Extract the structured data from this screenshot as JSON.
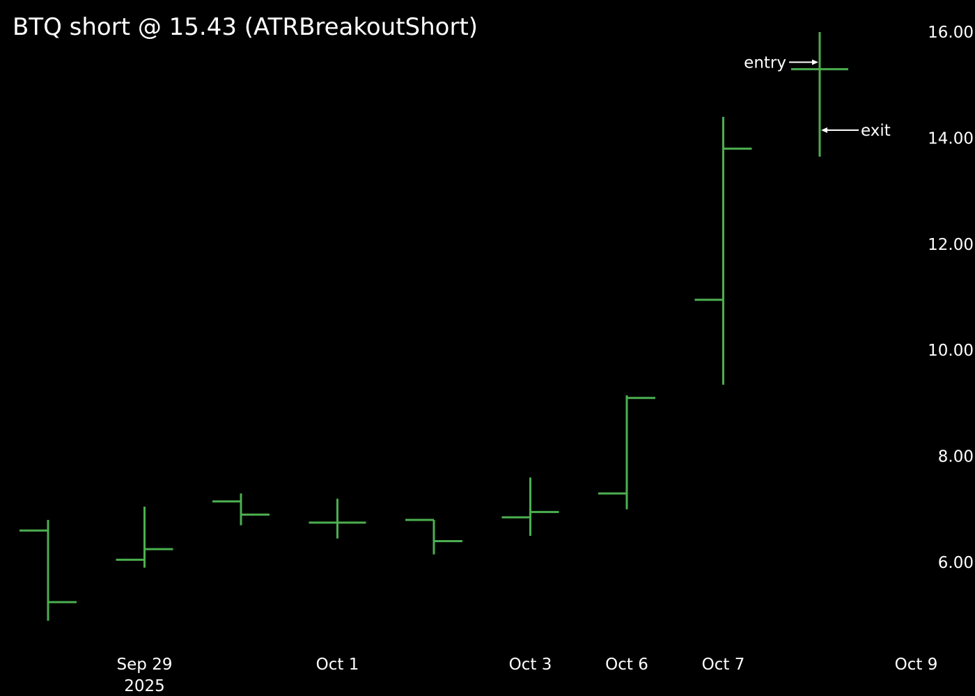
{
  "chart_data": {
    "type": "ohlc",
    "title": "BTQ short @ 15.43 (ATRBreakoutShort)",
    "xlabel": "",
    "ylabel": "",
    "y_axis_side": "right",
    "ylim": [
      4.6,
      16.4
    ],
    "y_ticks": [
      "6.00",
      "8.00",
      "10.00",
      "12.00",
      "14.00",
      "16.00"
    ],
    "grid": false,
    "legend": "none",
    "colors": {
      "background": "#000000",
      "bars": "#4caf50",
      "text": "#ffffff"
    },
    "x_tick_labels": [
      {
        "label": "Sep 29",
        "sublabel": "2025"
      },
      {
        "label": "Oct 1",
        "sublabel": ""
      },
      {
        "label": "Oct 3",
        "sublabel": ""
      },
      {
        "label": "Oct 6",
        "sublabel": ""
      },
      {
        "label": "Oct 7",
        "sublabel": ""
      },
      {
        "label": "Oct 9",
        "sublabel": ""
      }
    ],
    "bars": [
      {
        "open": 6.6,
        "high": 6.8,
        "low": 4.9,
        "close": 5.25
      },
      {
        "open": 6.05,
        "high": 7.05,
        "low": 5.9,
        "close": 6.25
      },
      {
        "open": 7.15,
        "high": 7.3,
        "low": 6.7,
        "close": 6.9
      },
      {
        "open": 6.75,
        "high": 7.2,
        "low": 6.45,
        "close": 6.75
      },
      {
        "open": 6.8,
        "high": 6.8,
        "low": 6.15,
        "close": 6.4
      },
      {
        "open": 6.85,
        "high": 7.6,
        "low": 6.5,
        "close": 6.95
      },
      {
        "open": 7.3,
        "high": 9.15,
        "low": 7.0,
        "close": 9.1
      },
      {
        "open": 10.95,
        "high": 14.4,
        "low": 9.35,
        "close": 13.8
      },
      {
        "open": 15.3,
        "high": 16.0,
        "low": 13.65,
        "close": 15.3
      }
    ],
    "annotations": [
      {
        "label": "entry",
        "price": 15.43,
        "side": "left"
      },
      {
        "label": "exit",
        "price": 14.15,
        "side": "right"
      }
    ]
  }
}
